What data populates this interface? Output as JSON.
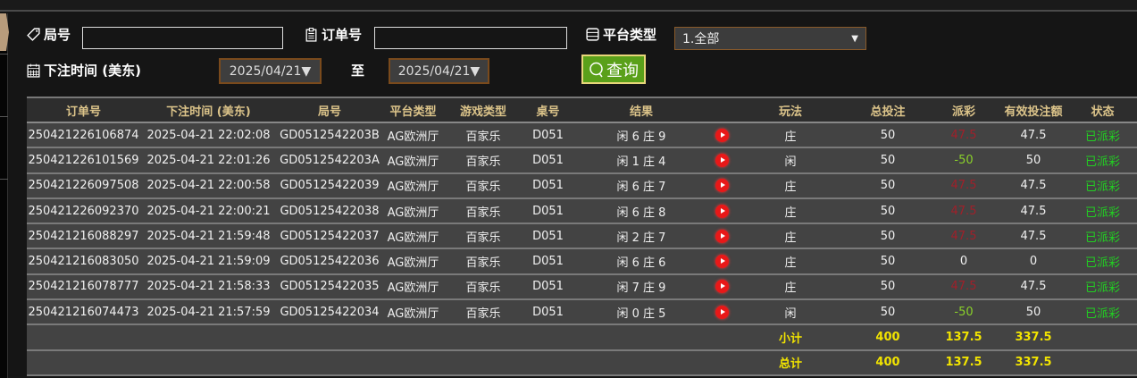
{
  "filters": {
    "round_label": "局号",
    "round_value": "",
    "order_label": "订单号",
    "order_value": "",
    "platform_label": "平台类型",
    "platform_selected": "1.全部",
    "time_label": "下注时间 (美东)",
    "date_from": "2025/04/21▼",
    "to_label": "至",
    "date_to": "2025/04/21▼",
    "query_label": "查询"
  },
  "table": {
    "headers": [
      "订单号",
      "下注时间 (美东)",
      "局号",
      "平台类型",
      "游戏类型",
      "桌号",
      "结果",
      "",
      "玩法",
      "总投注",
      "派彩",
      "有效投注额",
      "状态"
    ],
    "rows": [
      {
        "order": "250421226106874",
        "time": "2025-04-21 22:02:08",
        "round": "GD0512542203B",
        "platform": "AG欧洲厅",
        "game": "百家乐",
        "table": "D051",
        "result": "闲 6 庄 9",
        "play": "庄",
        "bet": "50",
        "payout": "47.5",
        "payout_type": "pos",
        "valid": "47.5",
        "status": "已派彩"
      },
      {
        "order": "250421226101569",
        "time": "2025-04-21 22:01:26",
        "round": "GD0512542203A",
        "platform": "AG欧洲厅",
        "game": "百家乐",
        "table": "D051",
        "result": "闲 1 庄 4",
        "play": "闲",
        "bet": "50",
        "payout": "-50",
        "payout_type": "neg",
        "valid": "50",
        "status": "已派彩"
      },
      {
        "order": "250421226097508",
        "time": "2025-04-21 22:00:58",
        "round": "GD05125422039",
        "platform": "AG欧洲厅",
        "game": "百家乐",
        "table": "D051",
        "result": "闲 6 庄 7",
        "play": "庄",
        "bet": "50",
        "payout": "47.5",
        "payout_type": "pos",
        "valid": "47.5",
        "status": "已派彩"
      },
      {
        "order": "250421226092370",
        "time": "2025-04-21 22:00:21",
        "round": "GD05125422038",
        "platform": "AG欧洲厅",
        "game": "百家乐",
        "table": "D051",
        "result": "闲 6 庄 8",
        "play": "庄",
        "bet": "50",
        "payout": "47.5",
        "payout_type": "pos",
        "valid": "47.5",
        "status": "已派彩"
      },
      {
        "order": "250421216088297",
        "time": "2025-04-21 21:59:48",
        "round": "GD05125422037",
        "platform": "AG欧洲厅",
        "game": "百家乐",
        "table": "D051",
        "result": "闲 2 庄 7",
        "play": "庄",
        "bet": "50",
        "payout": "47.5",
        "payout_type": "pos",
        "valid": "47.5",
        "status": "已派彩"
      },
      {
        "order": "250421216083050",
        "time": "2025-04-21 21:59:09",
        "round": "GD05125422036",
        "platform": "AG欧洲厅",
        "game": "百家乐",
        "table": "D051",
        "result": "闲 6 庄 6",
        "play": "庄",
        "bet": "50",
        "payout": "0",
        "payout_type": "zero",
        "valid": "0",
        "status": "已派彩"
      },
      {
        "order": "250421216078777",
        "time": "2025-04-21 21:58:33",
        "round": "GD05125422035",
        "platform": "AG欧洲厅",
        "game": "百家乐",
        "table": "D051",
        "result": "闲 7 庄 9",
        "play": "庄",
        "bet": "50",
        "payout": "47.5",
        "payout_type": "pos",
        "valid": "47.5",
        "status": "已派彩"
      },
      {
        "order": "250421216074473",
        "time": "2025-04-21 21:57:59",
        "round": "GD05125422034",
        "platform": "AG欧洲厅",
        "game": "百家乐",
        "table": "D051",
        "result": "闲 0 庄 5",
        "play": "闲",
        "bet": "50",
        "payout": "-50",
        "payout_type": "neg",
        "valid": "50",
        "status": "已派彩"
      }
    ],
    "subtotal": {
      "label": "小计",
      "bet": "400",
      "payout": "137.5",
      "valid": "337.5"
    },
    "total": {
      "label": "总计",
      "bet": "400",
      "payout": "137.5",
      "valid": "337.5"
    }
  },
  "colors": {
    "header_text": "#dcc48a",
    "positive_payout": "#a0202a",
    "negative_payout": "#8ad02a",
    "status": "#22d022",
    "sum": "#f2e400",
    "query_button": "#5aa01a"
  }
}
